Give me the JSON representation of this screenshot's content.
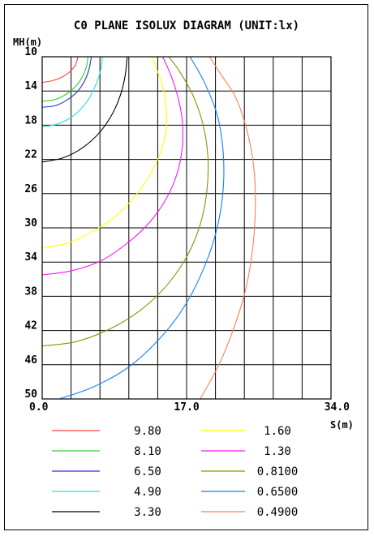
{
  "chart_data": {
    "type": "line",
    "title": "C0 PLANE ISOLUX DIAGRAM (UNIT:lx)",
    "xlabel": "S(m)",
    "ylabel": "MH(m)",
    "xlim": [
      0,
      34
    ],
    "ylim": [
      10,
      50
    ],
    "y_inverted": true,
    "grid": true,
    "x_ticks": [
      "0.0",
      "17.0",
      "34.0"
    ],
    "x_tick_values": [
      0,
      17,
      34
    ],
    "y_ticks": [
      "10",
      "14",
      "18",
      "22",
      "26",
      "30",
      "34",
      "38",
      "42",
      "46",
      "50"
    ],
    "y_tick_values": [
      10,
      14,
      18,
      22,
      26,
      30,
      34,
      38,
      42,
      46,
      50
    ],
    "legend_position": "bottom",
    "series": [
      {
        "name": "9.80",
        "color": "#ff4040",
        "points": [
          [
            0,
            13.0
          ],
          [
            1.2,
            12.8
          ],
          [
            2.3,
            12.4
          ],
          [
            3.2,
            11.8
          ],
          [
            3.9,
            11.0
          ],
          [
            4.2,
            10.0
          ]
        ]
      },
      {
        "name": "8.10",
        "color": "#30d030",
        "points": [
          [
            0,
            15.2
          ],
          [
            1.5,
            15.0
          ],
          [
            2.8,
            14.4
          ],
          [
            3.9,
            13.5
          ],
          [
            4.7,
            12.4
          ],
          [
            5.2,
            11.2
          ],
          [
            5.4,
            10.0
          ]
        ]
      },
      {
        "name": "6.50",
        "color": "#3030d0",
        "points": [
          [
            0,
            15.9
          ],
          [
            1.6,
            15.7
          ],
          [
            3.0,
            15.0
          ],
          [
            4.2,
            14.0
          ],
          [
            5.0,
            12.8
          ],
          [
            5.5,
            11.5
          ],
          [
            5.8,
            10.0
          ]
        ]
      },
      {
        "name": "4.90",
        "color": "#20e0e0",
        "points": [
          [
            0,
            18.2
          ],
          [
            2.0,
            17.8
          ],
          [
            3.8,
            16.8
          ],
          [
            5.3,
            15.2
          ],
          [
            6.3,
            13.3
          ],
          [
            6.9,
            11.5
          ],
          [
            7.1,
            10.0
          ]
        ]
      },
      {
        "name": "3.30",
        "color": "#000000",
        "points": [
          [
            0,
            22.3
          ],
          [
            2.5,
            21.8
          ],
          [
            4.8,
            20.6
          ],
          [
            6.8,
            18.8
          ],
          [
            8.3,
            16.6
          ],
          [
            9.3,
            14.2
          ],
          [
            9.8,
            12.0
          ],
          [
            10.0,
            10.0
          ]
        ]
      },
      {
        "name": "1.60",
        "color": "#ffff00",
        "points": [
          [
            0,
            32.3
          ],
          [
            3.0,
            31.8
          ],
          [
            6.0,
            30.4
          ],
          [
            8.7,
            28.6
          ],
          [
            11.0,
            26.2
          ],
          [
            12.8,
            23.6
          ],
          [
            14.0,
            21.0
          ],
          [
            14.6,
            18.5
          ],
          [
            14.6,
            16.0
          ],
          [
            14.2,
            13.5
          ],
          [
            13.5,
            11.5
          ],
          [
            12.9,
            10.0
          ]
        ]
      },
      {
        "name": "1.30",
        "color": "#ff10ff",
        "points": [
          [
            0,
            35.5
          ],
          [
            3.5,
            35.0
          ],
          [
            7.0,
            33.8
          ],
          [
            10.0,
            31.8
          ],
          [
            12.6,
            29.4
          ],
          [
            14.6,
            26.6
          ],
          [
            15.9,
            23.6
          ],
          [
            16.5,
            20.5
          ],
          [
            16.5,
            17.5
          ],
          [
            16.0,
            14.8
          ],
          [
            15.2,
            12.3
          ],
          [
            14.2,
            10.0
          ]
        ]
      },
      {
        "name": "0.8100",
        "color": "#909000",
        "points": [
          [
            0,
            43.8
          ],
          [
            4.0,
            43.3
          ],
          [
            8.0,
            41.8
          ],
          [
            11.6,
            39.6
          ],
          [
            14.6,
            36.8
          ],
          [
            17.0,
            33.4
          ],
          [
            18.6,
            29.6
          ],
          [
            19.4,
            25.6
          ],
          [
            19.5,
            21.6
          ],
          [
            18.9,
            17.8
          ],
          [
            17.7,
            14.4
          ],
          [
            16.1,
            11.6
          ],
          [
            14.9,
            10.0
          ]
        ]
      },
      {
        "name": "0.6500",
        "color": "#1080ff",
        "points": [
          [
            2.0,
            50.0
          ],
          [
            6.0,
            48.6
          ],
          [
            10.0,
            46.4
          ],
          [
            13.6,
            43.2
          ],
          [
            16.6,
            39.4
          ],
          [
            18.9,
            35.0
          ],
          [
            20.5,
            30.4
          ],
          [
            21.3,
            25.6
          ],
          [
            21.3,
            21.0
          ],
          [
            20.6,
            16.8
          ],
          [
            19.1,
            13.0
          ],
          [
            17.4,
            10.0
          ]
        ]
      },
      {
        "name": "0.4900",
        "color": "#ff8050",
        "points": [
          [
            18.6,
            50.0
          ],
          [
            20.8,
            46.0
          ],
          [
            22.6,
            41.6
          ],
          [
            24.0,
            37.0
          ],
          [
            24.8,
            32.2
          ],
          [
            25.1,
            27.4
          ],
          [
            24.9,
            22.8
          ],
          [
            24.1,
            18.6
          ],
          [
            22.8,
            14.8
          ],
          [
            21.0,
            12.0
          ],
          [
            19.7,
            10.0
          ]
        ]
      }
    ]
  }
}
